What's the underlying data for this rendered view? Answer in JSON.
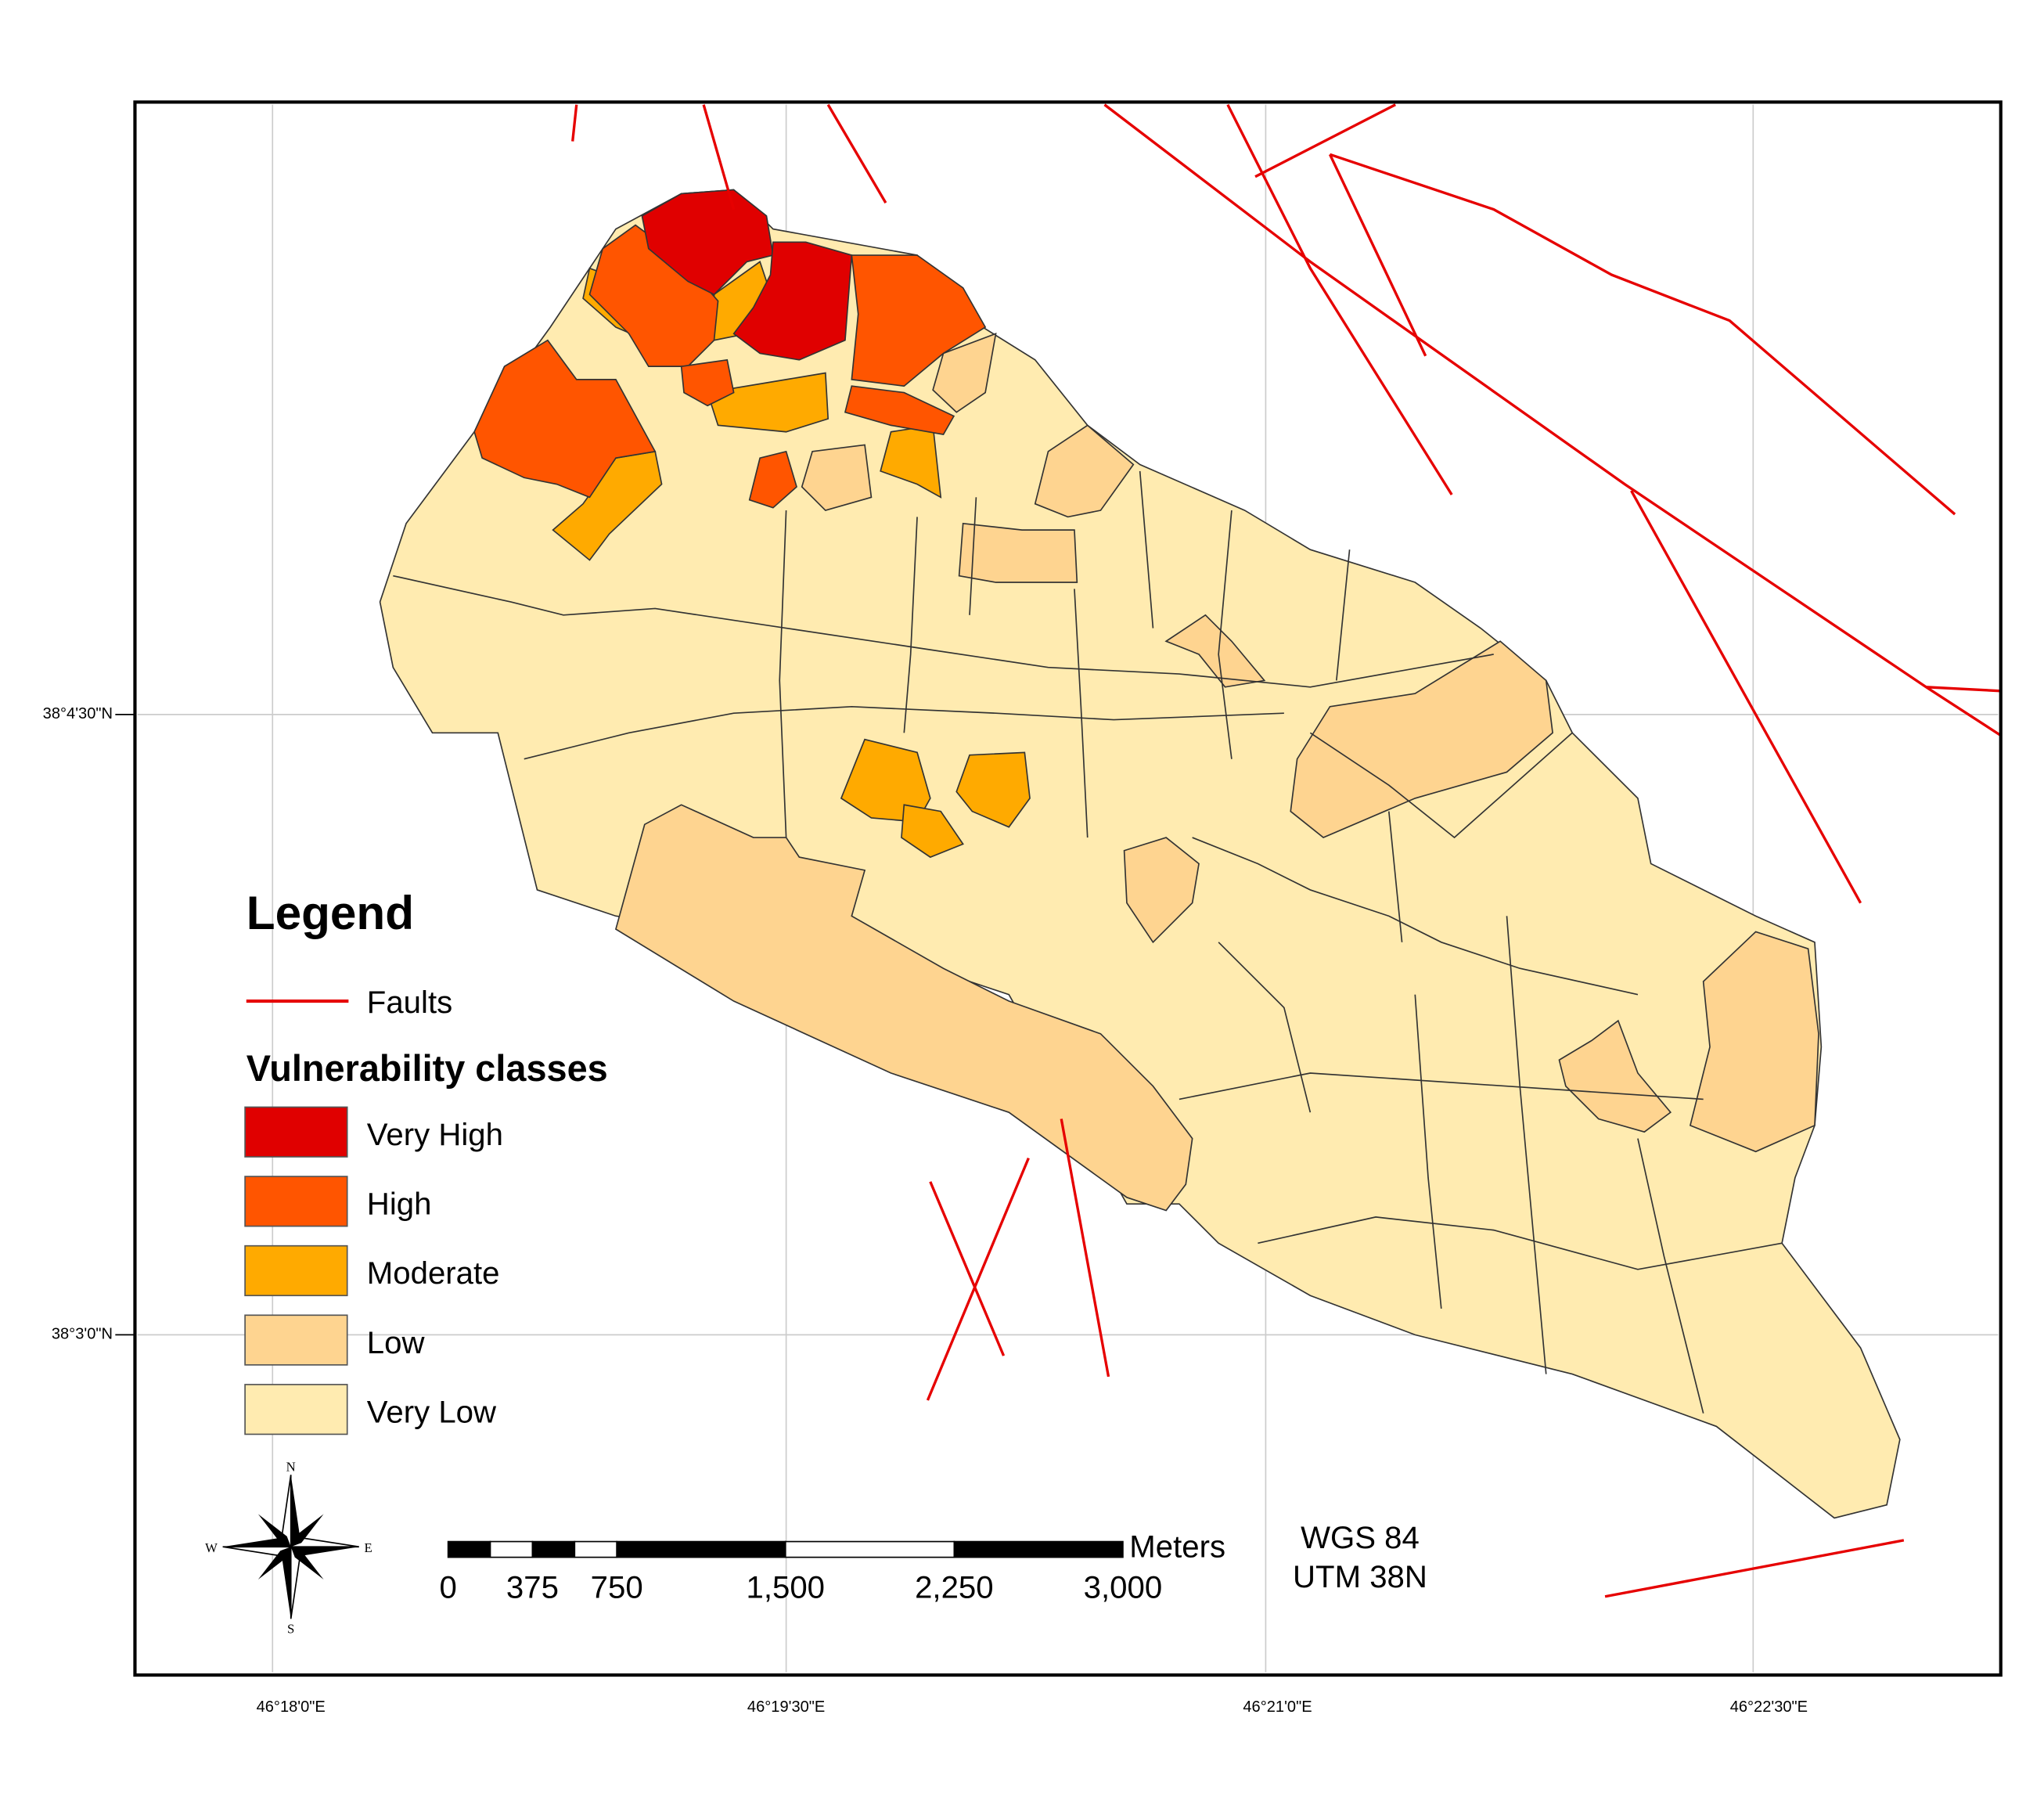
{
  "graticule": {
    "latitudes": [
      "38°4'30\"N",
      "38°3'0\"N"
    ],
    "longitudes": [
      "46°18'0\"E",
      "46°19'30\"E",
      "46°21'0\"E",
      "46°22'30\"E"
    ]
  },
  "legend": {
    "title": "Legend",
    "faults": {
      "label": "Faults",
      "color": "#e60000"
    },
    "classes_title": "Vulnerability classes",
    "classes": [
      {
        "label": "Very High",
        "color": "#e00000"
      },
      {
        "label": "High",
        "color": "#ff5500"
      },
      {
        "label": "Moderate",
        "color": "#ffaa00"
      },
      {
        "label": "Low",
        "color": "#fed490"
      },
      {
        "label": "Very Low",
        "color": "#ffebb0"
      }
    ]
  },
  "scale_bar": {
    "unit": "Meters",
    "ticks": [
      0,
      375,
      750,
      {
        "value": 1500,
        "label": "1,500"
      },
      {
        "value": 2250,
        "label": "2,250"
      },
      {
        "value": 3000,
        "label": "3,000"
      }
    ]
  },
  "projection": [
    "WGS 84",
    "UTM 38N"
  ],
  "north_arrow": {
    "n": "N",
    "s": "S",
    "e": "E",
    "w": "W"
  }
}
